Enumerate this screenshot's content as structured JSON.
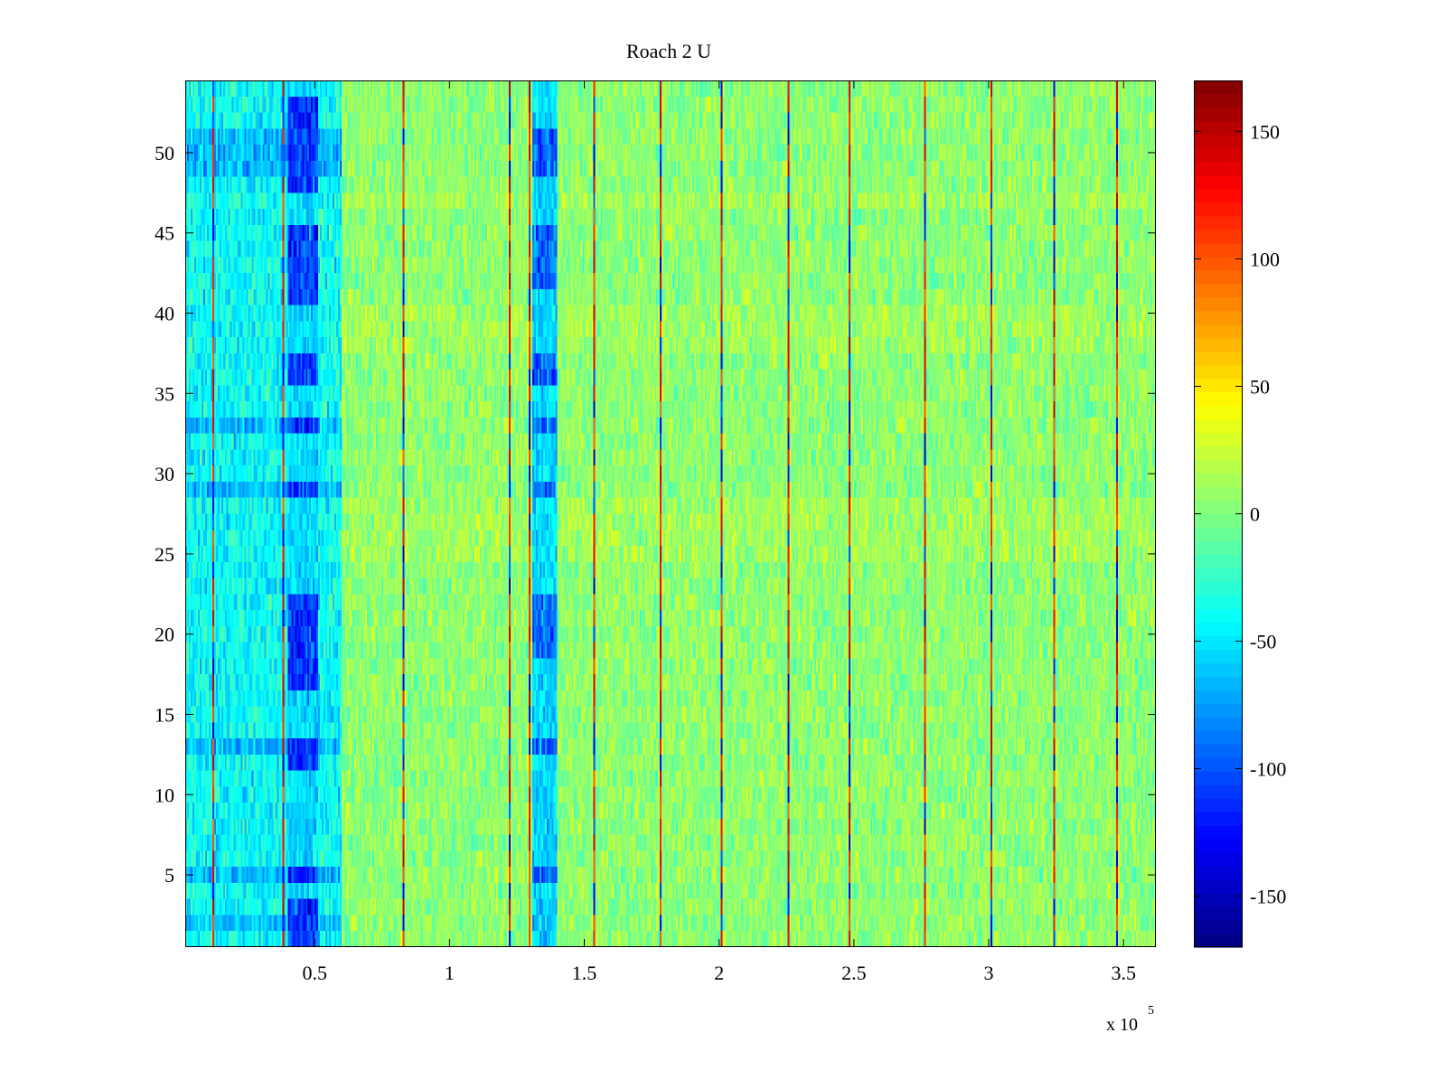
{
  "chart_data": {
    "type": "heatmap",
    "title": "Roach 2 U",
    "xlabel": "",
    "ylabel": "",
    "x_multiplier_label": "x 10",
    "x_multiplier_exponent": "5",
    "xlim": [
      0.02,
      3.62
    ],
    "ylim": [
      0.5,
      54.5
    ],
    "x_ticks": [
      0.5,
      1,
      1.5,
      2,
      2.5,
      3,
      3.5
    ],
    "x_tick_labels": [
      "0.5",
      "1",
      "1.5",
      "2",
      "2.5",
      "3",
      "3.5"
    ],
    "y_ticks": [
      5,
      10,
      15,
      20,
      25,
      30,
      35,
      40,
      45,
      50
    ],
    "y_tick_labels": [
      "5",
      "10",
      "15",
      "20",
      "25",
      "30",
      "35",
      "40",
      "45",
      "50"
    ],
    "rows": 54,
    "colormap": "jet",
    "clim": [
      -170,
      170
    ],
    "colorbar_ticks": [
      150,
      100,
      50,
      0,
      -50,
      -100,
      -150
    ],
    "colorbar_tick_labels": [
      "150",
      "100",
      "50",
      "0",
      "-50",
      "-100",
      "-150"
    ],
    "background_mean": 5,
    "background_noise": 18,
    "low_value_regions": [
      {
        "x_start": 0.02,
        "x_end": 0.6,
        "value": -40
      },
      {
        "x_start": 0.4,
        "x_end": 0.51,
        "value": -110,
        "rows_strong": [
          1,
          2,
          3,
          5,
          12,
          13,
          17,
          18,
          19,
          20,
          21,
          22,
          29,
          33,
          36,
          37,
          41,
          42,
          43,
          44,
          45,
          48,
          49,
          50,
          51,
          52,
          53
        ]
      },
      {
        "x_start": 1.31,
        "x_end": 1.4,
        "value": -90,
        "rows_strong": [
          5,
          13,
          19,
          20,
          21,
          22,
          29,
          33,
          36,
          37,
          42,
          43,
          44,
          45,
          49,
          50,
          51
        ]
      }
    ],
    "bright_rows": [
      25,
      26,
      27,
      28,
      38,
      39,
      40,
      47
    ],
    "dark_rows": [
      2,
      5,
      13,
      29,
      33,
      49,
      50,
      51
    ],
    "vertical_spike_lines": [
      0.12,
      0.38,
      0.83,
      1.22,
      1.29,
      1.53,
      1.78,
      2.01,
      2.25,
      2.48,
      2.76,
      3.01,
      3.24,
      3.47
    ],
    "spike_value": 150
  }
}
